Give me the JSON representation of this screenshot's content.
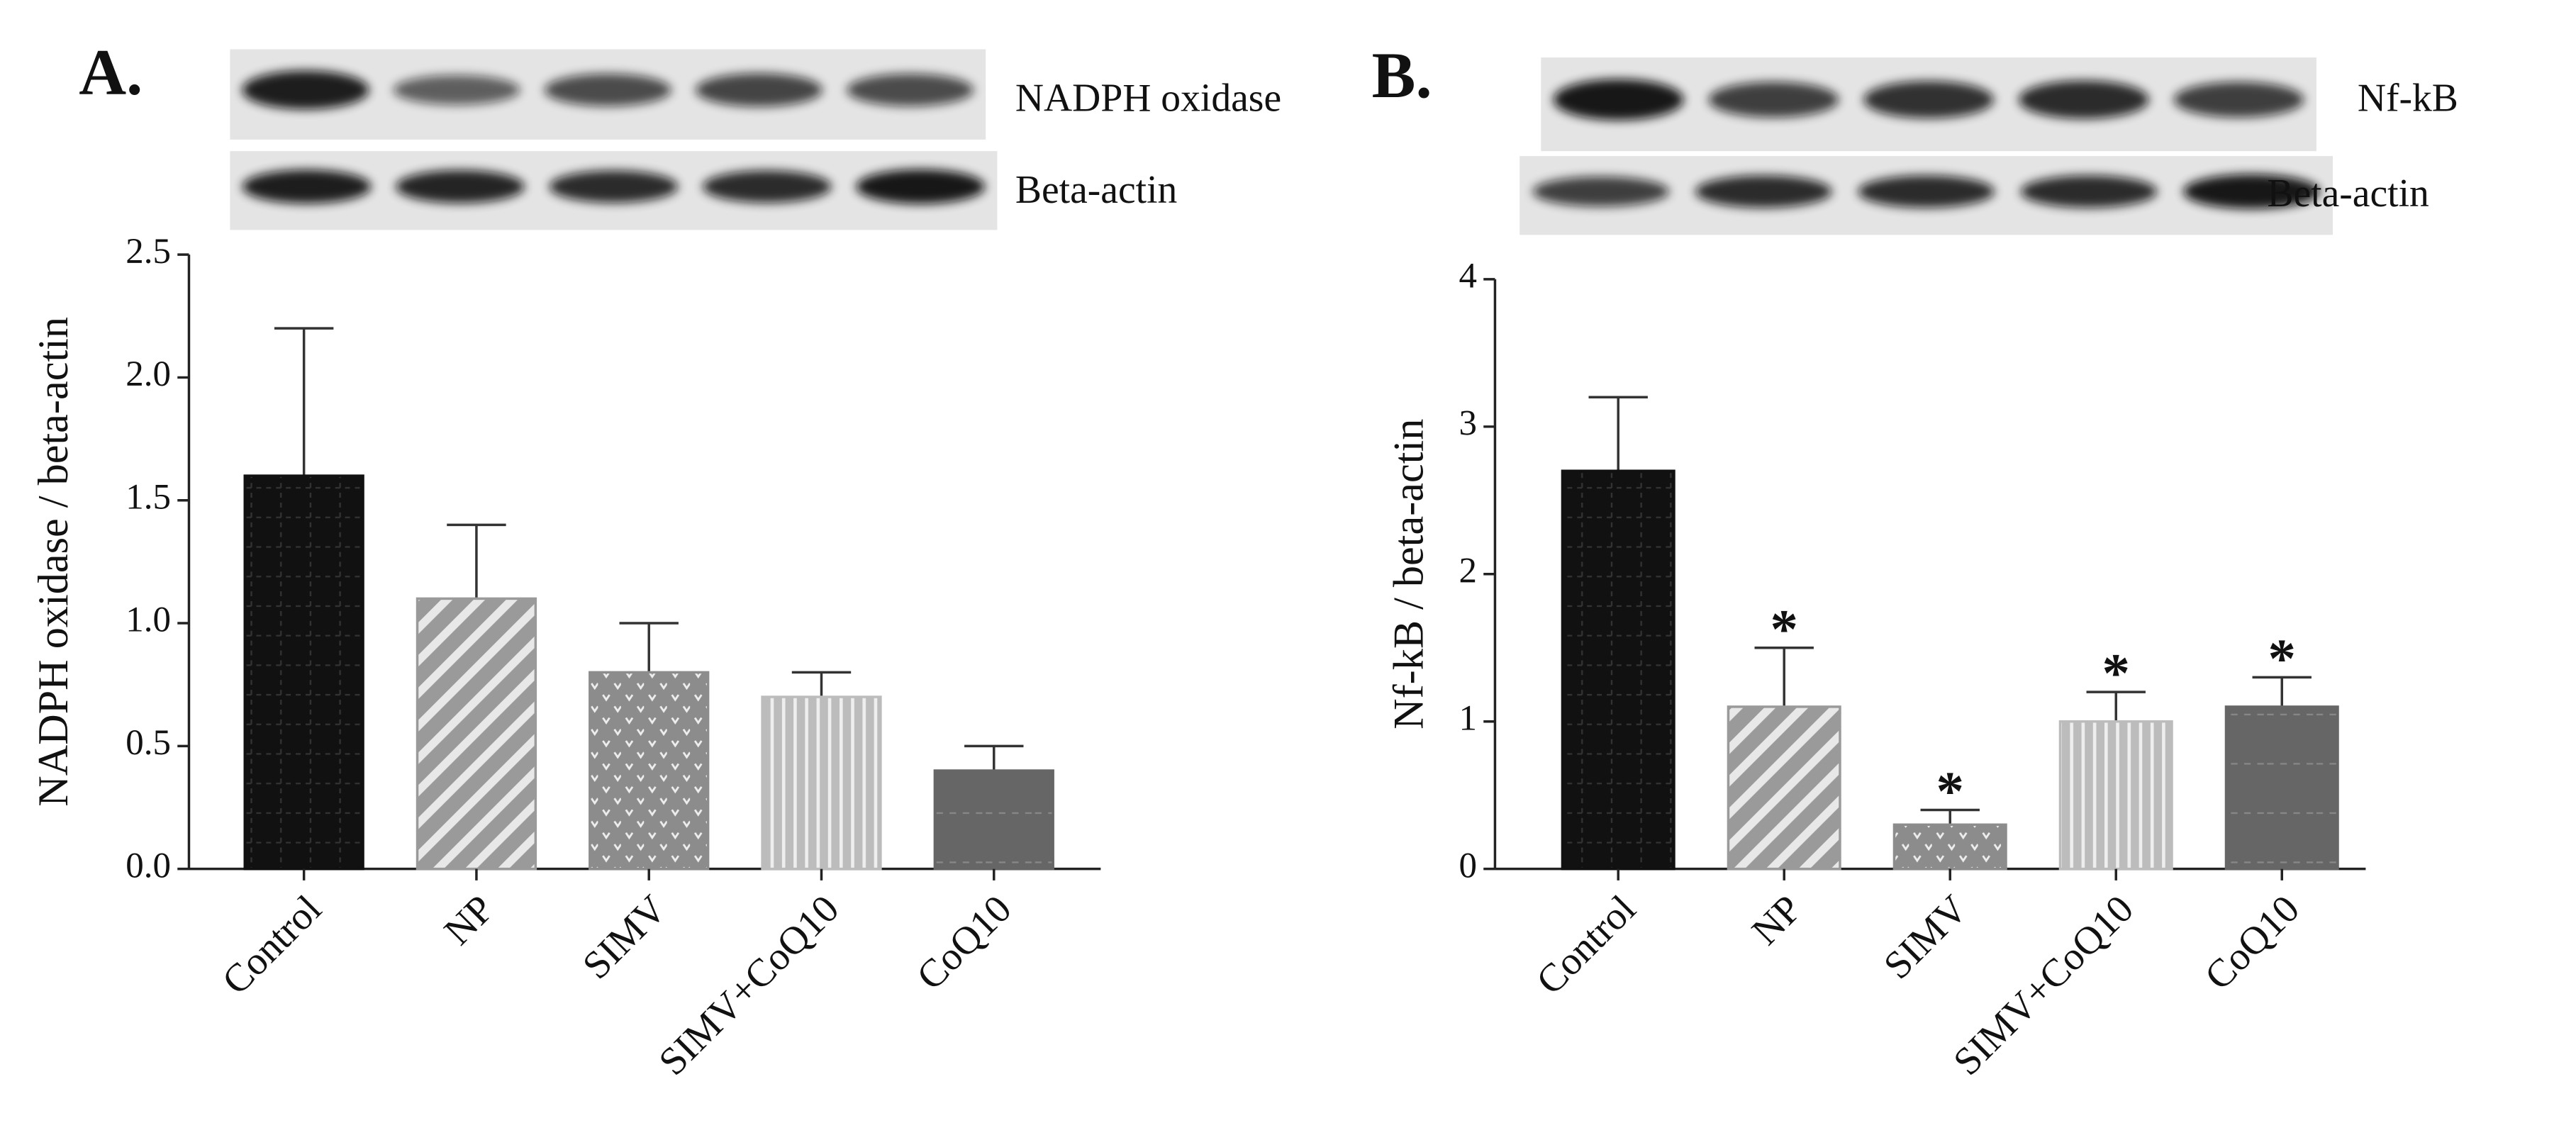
{
  "chart_data": [
    {
      "type": "bar",
      "panel_label": "A.",
      "blot_labels": [
        "NADPH oxidase",
        "Beta-actin"
      ],
      "ylabel": "NADPH oxidase / beta-actin",
      "categories": [
        "Control",
        "NP",
        "SIMV",
        "SIMV+CoQ10",
        "CoQ10"
      ],
      "values": [
        1.6,
        1.1,
        0.8,
        0.7,
        0.4
      ],
      "errors": [
        0.6,
        0.3,
        0.2,
        0.1,
        0.1
      ],
      "colors": [
        "#111111",
        "#9a9a9a",
        "#8c8c8c",
        "#bcbcbc",
        "#666666"
      ],
      "patterns": [
        "grid",
        "diagonal",
        "dots",
        "vertical",
        "plain"
      ],
      "ylim": [
        0,
        2.5
      ],
      "yticks": [
        {
          "value": 0,
          "label": "0.0"
        },
        0.5,
        {
          "value": 1,
          "label": "1.0"
        },
        1.5,
        {
          "value": 2,
          "label": "2.0"
        },
        2.5
      ]
    },
    {
      "type": "bar",
      "panel_label": "B.",
      "blot_labels": [
        "Nf-kB",
        "Beta-actin"
      ],
      "ylabel": "Nf-kB / beta-actin",
      "categories": [
        "Control",
        "NP",
        "SIMV",
        "SIMV+CoQ10",
        "CoQ10"
      ],
      "values": [
        2.7,
        1.1,
        0.3,
        1.0,
        1.1
      ],
      "errors": [
        0.5,
        0.4,
        0.1,
        0.2,
        0.2
      ],
      "significance": [
        null,
        "*",
        "*",
        "*",
        "*"
      ],
      "colors": [
        "#111111",
        "#9a9a9a",
        "#8c8c8c",
        "#bcbcbc",
        "#666666"
      ],
      "patterns": [
        "grid",
        "diagonal",
        "dots",
        "vertical",
        "plain"
      ],
      "ylim": [
        0,
        4
      ],
      "yticks": [
        0,
        1,
        2,
        3,
        4
      ]
    }
  ]
}
